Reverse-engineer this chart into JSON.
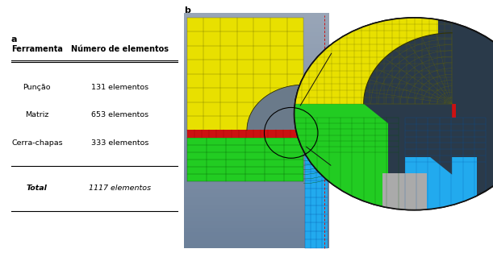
{
  "label_a": "a",
  "label_b": "b",
  "table_header_col1": "Ferramenta",
  "table_header_col2": "Número de elementos",
  "table_rows": [
    [
      "Punção",
      "131 elementos"
    ],
    [
      "Matriz",
      "653 elementos"
    ],
    [
      "Cerra-chapas",
      "333 elementos"
    ]
  ],
  "table_total_label": "Total",
  "table_total_value": "1117 elementos",
  "bg_color": "#ffffff",
  "header_fontsize": 7.0,
  "row_fontsize": 6.8,
  "label_fontsize": 8,
  "yellow_color": "#e8e000",
  "green_color": "#22cc22",
  "blue_color": "#22aaee",
  "red_color": "#cc1111",
  "dark_bg": "#3a4a5a",
  "mesh_line_color": "#666600",
  "green_mesh_color": "#005500",
  "blue_mesh_color": "#0055aa",
  "circle_zoom_bg": "#2a3a4a",
  "annot_line_color": "#111111"
}
